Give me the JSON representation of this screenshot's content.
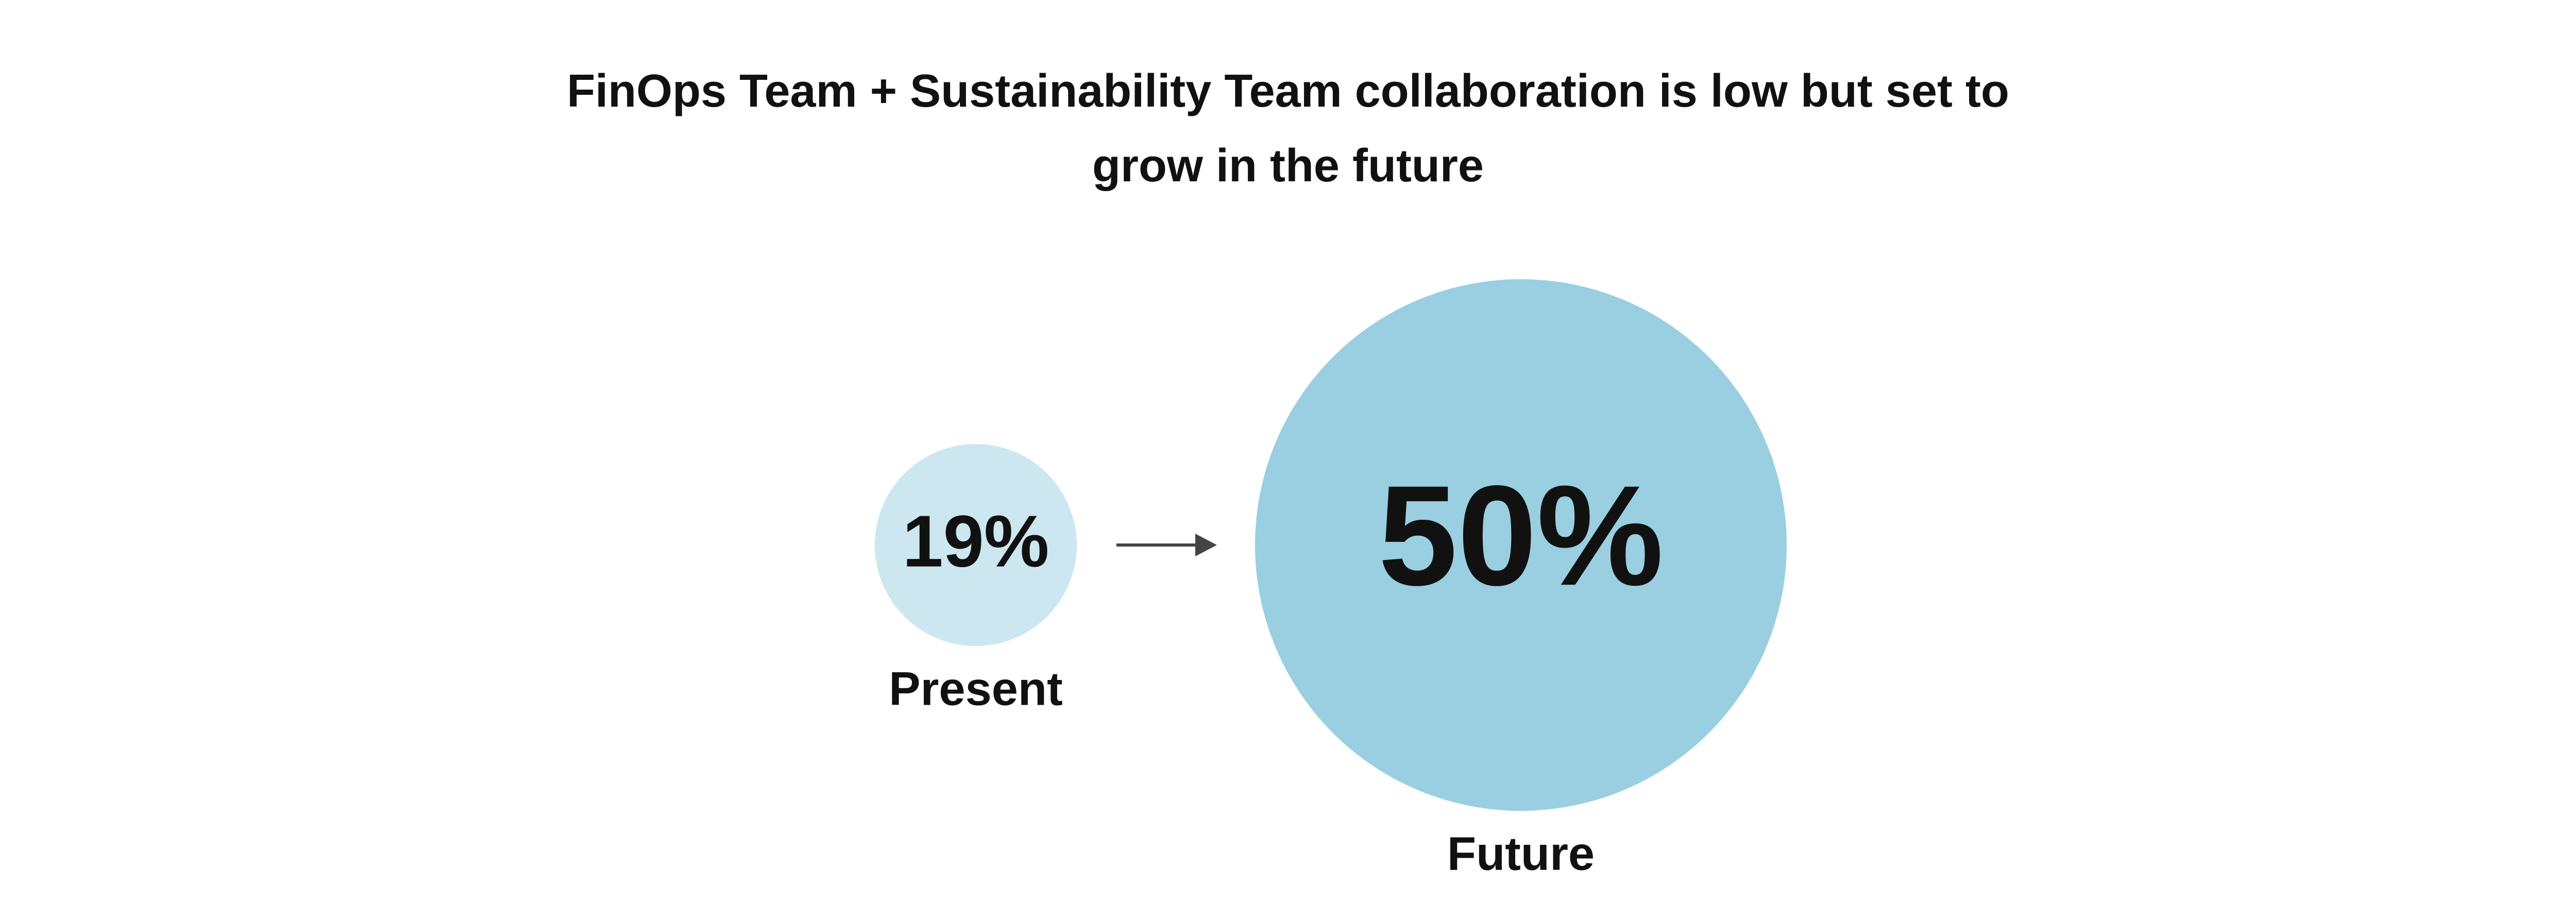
{
  "chart_data": {
    "type": "bubble",
    "title": "FinOps Team + Sustainability Team collaboration is low but set to grow in the future",
    "categories": [
      "Present",
      "Future"
    ],
    "values": [
      19,
      50
    ],
    "value_labels": [
      "19%",
      "50%"
    ],
    "colors": [
      "#cce7f0",
      "#99cfe0"
    ]
  }
}
